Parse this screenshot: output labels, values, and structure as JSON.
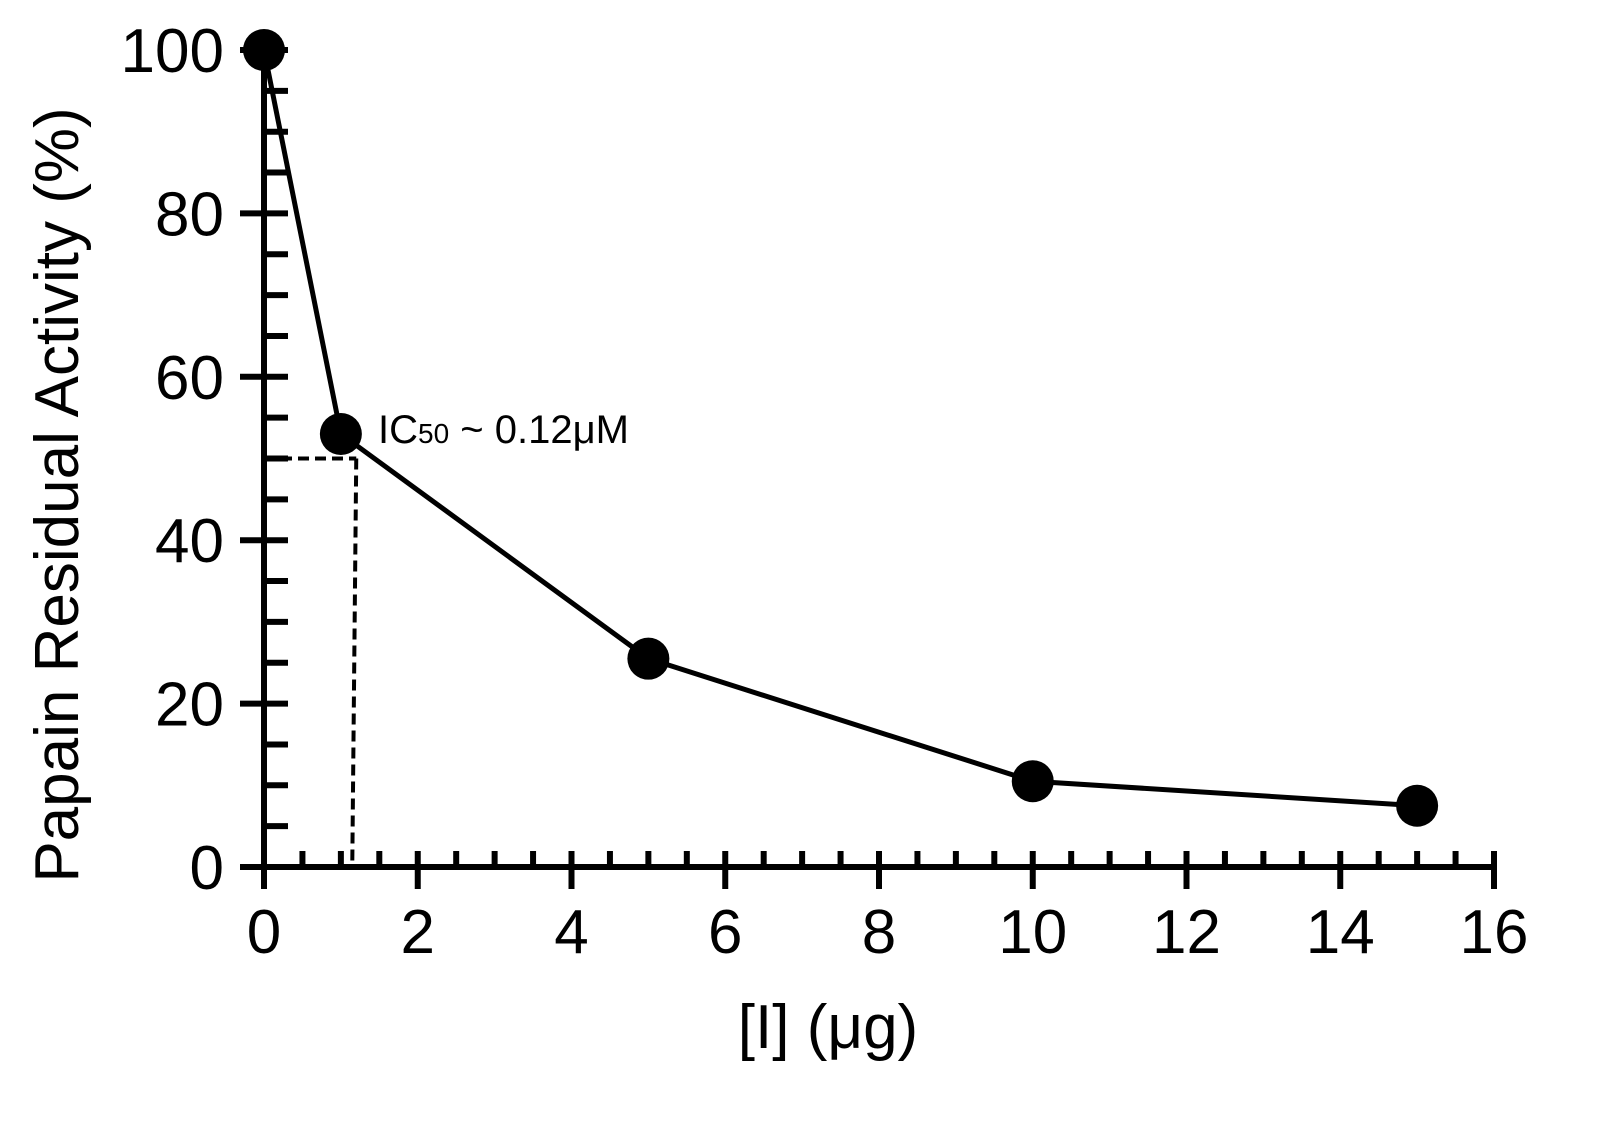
{
  "chart_data": {
    "type": "line",
    "title": "",
    "xlabel": "[I]  (μg)",
    "ylabel": "Papain Residual Activity (%)",
    "xlim": [
      0,
      16
    ],
    "ylim": [
      0,
      100
    ],
    "x_ticks": [
      0,
      2,
      4,
      6,
      8,
      10,
      12,
      14,
      16
    ],
    "y_ticks": [
      0,
      20,
      40,
      60,
      80,
      100
    ],
    "x_tick_labels": [
      "0",
      "2",
      "4",
      "6",
      "8",
      "10",
      "12",
      "14",
      "16"
    ],
    "y_tick_labels": [
      "0",
      "20",
      "40",
      "60",
      "80",
      "100"
    ],
    "grid": false,
    "series": [
      {
        "x": [
          0,
          1,
          5,
          10,
          15
        ],
        "values": [
          100,
          53,
          25.5,
          10.5,
          7.5
        ]
      }
    ],
    "ic50_guide": {
      "x": 1.2,
      "y": 50
    },
    "annotation": {
      "prefix": "IC",
      "subscript": "50",
      "suffix": " ~ 0.12μM"
    },
    "colors": {
      "line": "#000000",
      "marker": "#000000",
      "axis": "#000000"
    }
  }
}
